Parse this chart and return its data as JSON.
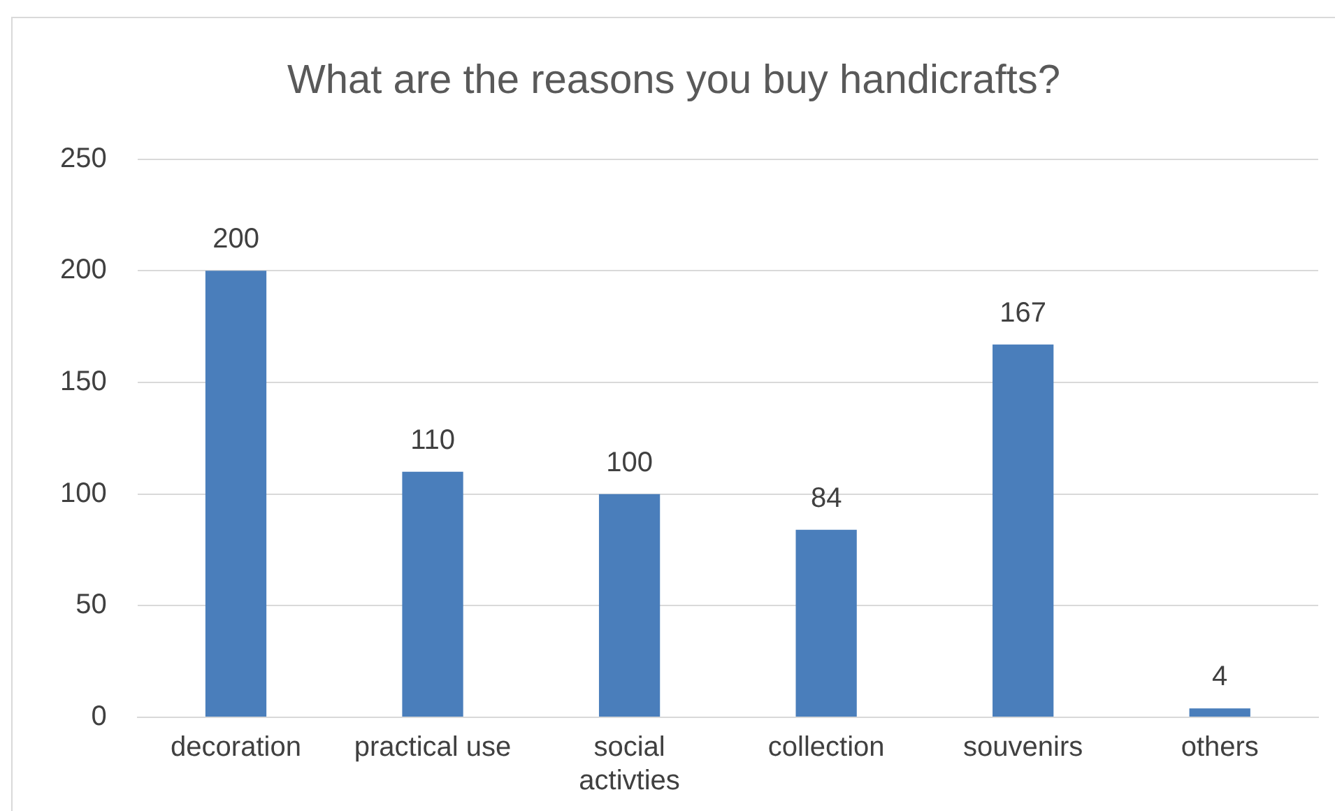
{
  "chart_data": {
    "type": "bar",
    "title": "What are the reasons you buy handicrafts?",
    "categories": [
      "decoration",
      "practical use",
      "social activties",
      "collection",
      "souvenirs",
      "others"
    ],
    "values": [
      200,
      110,
      100,
      84,
      167,
      4
    ],
    "color": "#4a7ebb",
    "ylim": [
      0,
      250
    ],
    "yticks": [
      0,
      50,
      100,
      150,
      200,
      250
    ],
    "grid": "y",
    "data_labels": true,
    "legend": false
  }
}
